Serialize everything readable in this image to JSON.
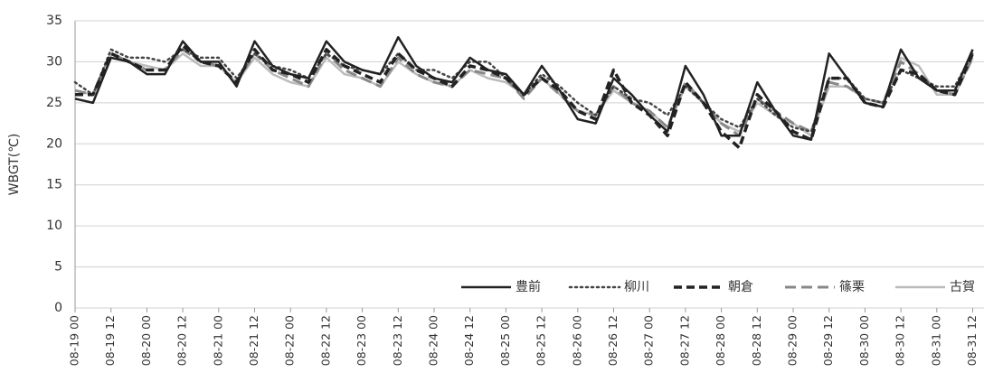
{
  "chart_data": {
    "type": "line",
    "y_label": "WBGT(℃)",
    "categories": [
      "08-19 00",
      null,
      "08-19 12",
      null,
      "08-20 00",
      null,
      "08-20 12",
      null,
      "08-21 00",
      null,
      "08-21 12",
      null,
      "08-22 00",
      null,
      "08-22 12",
      null,
      "08-23 00",
      null,
      "08-23 12",
      null,
      "08-24 00",
      null,
      "08-24 12",
      null,
      "08-25 00",
      null,
      "08-25 12",
      null,
      "08-26 00",
      null,
      "08-26 12",
      null,
      "08-27 00",
      null,
      "08-27 12",
      null,
      "08-28 00",
      null,
      "08-28 12",
      null,
      "08-29 00",
      null,
      "08-29 12",
      null,
      "08-30 00",
      null,
      "08-30 12",
      null,
      "08-31 00",
      null,
      "08-31 12"
    ],
    "ylim": [
      0,
      35
    ],
    "yticks": [
      0,
      5,
      10,
      15,
      20,
      25,
      30,
      35
    ],
    "grid": true,
    "legend": "lower right",
    "series": [
      {
        "name": "豊前",
        "color": "#222222",
        "style": "solid",
        "values": [
          25.5,
          25,
          30.5,
          30,
          28.5,
          28.5,
          32.5,
          30,
          30,
          27,
          32.5,
          29.5,
          28.5,
          28,
          32.5,
          30,
          29,
          28.5,
          33,
          29.5,
          28,
          27.5,
          30.5,
          29,
          28.5,
          26,
          29.5,
          26.5,
          23,
          22.5,
          28,
          26,
          23.5,
          21.5,
          29.5,
          26,
          21,
          21,
          27.5,
          24,
          21,
          20.5,
          31,
          28,
          25,
          24.5,
          31.5,
          28,
          26.5,
          26.5,
          31.5
        ]
      },
      {
        "name": "柳川",
        "color": "#444444",
        "style": "dotted",
        "values": [
          27.5,
          26,
          31.5,
          30.5,
          30.5,
          30,
          31.5,
          30.5,
          30.5,
          28,
          31,
          29.5,
          29,
          28,
          31,
          29.5,
          29,
          28.5,
          31,
          29,
          29,
          28,
          30,
          30,
          28,
          26,
          28.5,
          27,
          25,
          23.5,
          27,
          25.5,
          25,
          23.5,
          27,
          25,
          23,
          22,
          25.5,
          23.5,
          22,
          21.5,
          28,
          28,
          25.5,
          25,
          29,
          28,
          27,
          27,
          31
        ]
      },
      {
        "name": "朝倉",
        "color": "#222222",
        "style": "dashed",
        "values": [
          26,
          26,
          31,
          30,
          29,
          29,
          32,
          30,
          29.5,
          27.5,
          31.5,
          29,
          28.5,
          27.5,
          31.5,
          29.5,
          28.5,
          27.5,
          31,
          29,
          28,
          27,
          29.5,
          29,
          28,
          26,
          28,
          26.5,
          24,
          23,
          29,
          25,
          23.5,
          21,
          27.5,
          25,
          21.5,
          19.5,
          26,
          24,
          21.5,
          20.5,
          28,
          28,
          25,
          24.5,
          29,
          28.5,
          26.5,
          26,
          31
        ]
      },
      {
        "name": "篠栗",
        "color": "#888888",
        "style": "longdash",
        "values": [
          26.5,
          26,
          31,
          30,
          29,
          29,
          31.5,
          30,
          29.5,
          27.5,
          31,
          29,
          28,
          27,
          31,
          29,
          28,
          27,
          30.5,
          28.5,
          27.5,
          27,
          29,
          28.5,
          28,
          25.5,
          28,
          26,
          24,
          23.5,
          27,
          25,
          24,
          22,
          27.5,
          25,
          22.5,
          21,
          25.5,
          24,
          22.5,
          21.5,
          27.5,
          27,
          25.5,
          25,
          30,
          28.5,
          26.5,
          26,
          30.5
        ]
      },
      {
        "name": "古賀",
        "color": "#bbbbbb",
        "style": "solid",
        "values": [
          26.5,
          26,
          31,
          30,
          29.5,
          29,
          31,
          29.5,
          29.5,
          27.5,
          30.5,
          28.5,
          27.5,
          27,
          30.5,
          28.5,
          28,
          27,
          30,
          28.5,
          27.5,
          27,
          29,
          28,
          27.5,
          26,
          28,
          26,
          24,
          23.5,
          26.5,
          25,
          24,
          22,
          27,
          25,
          22.5,
          21.5,
          25,
          23.5,
          22.5,
          21,
          27,
          27,
          25.5,
          25,
          30.5,
          29.5,
          26,
          26,
          30.5
        ]
      }
    ]
  }
}
